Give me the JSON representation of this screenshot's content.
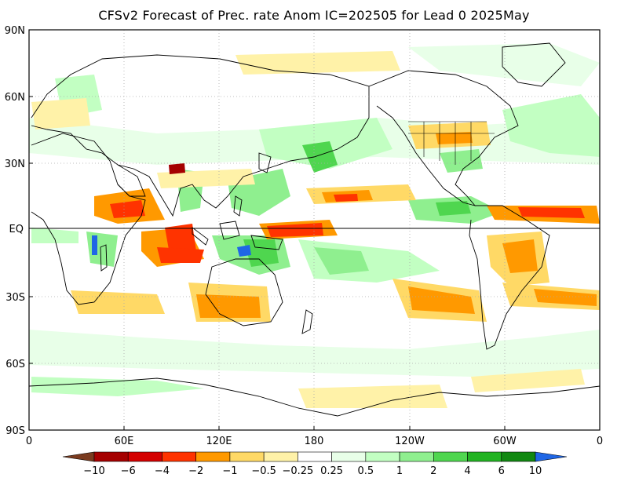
{
  "title": "CFSv2 Forecast of Prec. rate Anom IC=202505 for Lead 0 2025May",
  "axes": {
    "lat_labels": [
      "90N",
      "60N",
      "30N",
      "EQ",
      "30S",
      "60S",
      "90S"
    ],
    "lon_labels": [
      "0",
      "60E",
      "120E",
      "180",
      "120W",
      "60W",
      "0"
    ]
  },
  "colorbar": {
    "labels": [
      "−10",
      "−6",
      "−4",
      "−2",
      "−1",
      "−0.5",
      "−0.25",
      "0.25",
      "0.5",
      "1",
      "2",
      "4",
      "6",
      "10"
    ],
    "colors": [
      "#7a3b1f",
      "#a50000",
      "#d40000",
      "#ff3300",
      "#ff9900",
      "#ffd966",
      "#fff2a8",
      "#ffffff",
      "#e8ffe8",
      "#c2ffc2",
      "#8fef8f",
      "#4fd64f",
      "#22b322",
      "#118811",
      "#1f66e5"
    ]
  },
  "palette": {
    "land_outline": "#000000",
    "grid": "#aaaaaa",
    "equator": "#000000"
  }
}
